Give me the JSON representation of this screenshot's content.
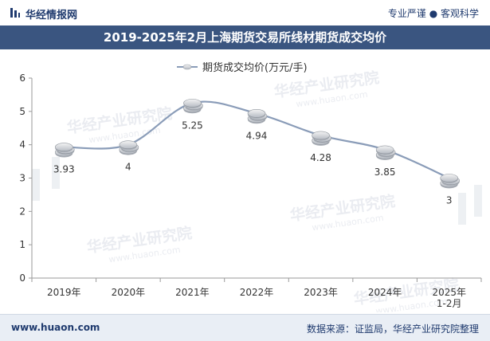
{
  "header": {
    "brand": "华经情报网",
    "tagline": "专业严谨 ● 客观科学"
  },
  "title": "2019-2025年2月上海期货交易所线材期货成交均价",
  "footer": {
    "website": "www.huaon.com",
    "source": "数据来源：证监局，华经产业研究院整理"
  },
  "watermark": {
    "cn": "华经产业研究院",
    "en": "www.huaon.com"
  },
  "colors": {
    "title_bg": "#3a5580",
    "line": "#8a9cb8",
    "marker": "#c8ccd2",
    "brand": "#1f3a6e"
  },
  "chart_data": {
    "type": "line",
    "title": "2019-2025年2月上海期货交易所线材期货成交均价",
    "legend": "期货成交均价(万元/手)",
    "legend_position": "top",
    "categories": [
      "2019年",
      "2020年",
      "2021年",
      "2022年",
      "2023年",
      "2024年",
      "2025年 1-2月"
    ],
    "category_lines": [
      [
        "2019年"
      ],
      [
        "2020年"
      ],
      [
        "2021年"
      ],
      [
        "2022年"
      ],
      [
        "2023年"
      ],
      [
        "2024年"
      ],
      [
        "2025年",
        "1-2月"
      ]
    ],
    "values": [
      3.93,
      4,
      5.25,
      4.94,
      4.28,
      3.85,
      3
    ],
    "value_labels": [
      "3.93",
      "4",
      "5.25",
      "4.94",
      "4.28",
      "3.85",
      "3"
    ],
    "ylim": [
      0,
      6
    ],
    "yticks": [
      "0",
      "1",
      "2",
      "3",
      "4",
      "5",
      "6"
    ],
    "xlabel": "",
    "ylabel": "",
    "smooth": true
  }
}
